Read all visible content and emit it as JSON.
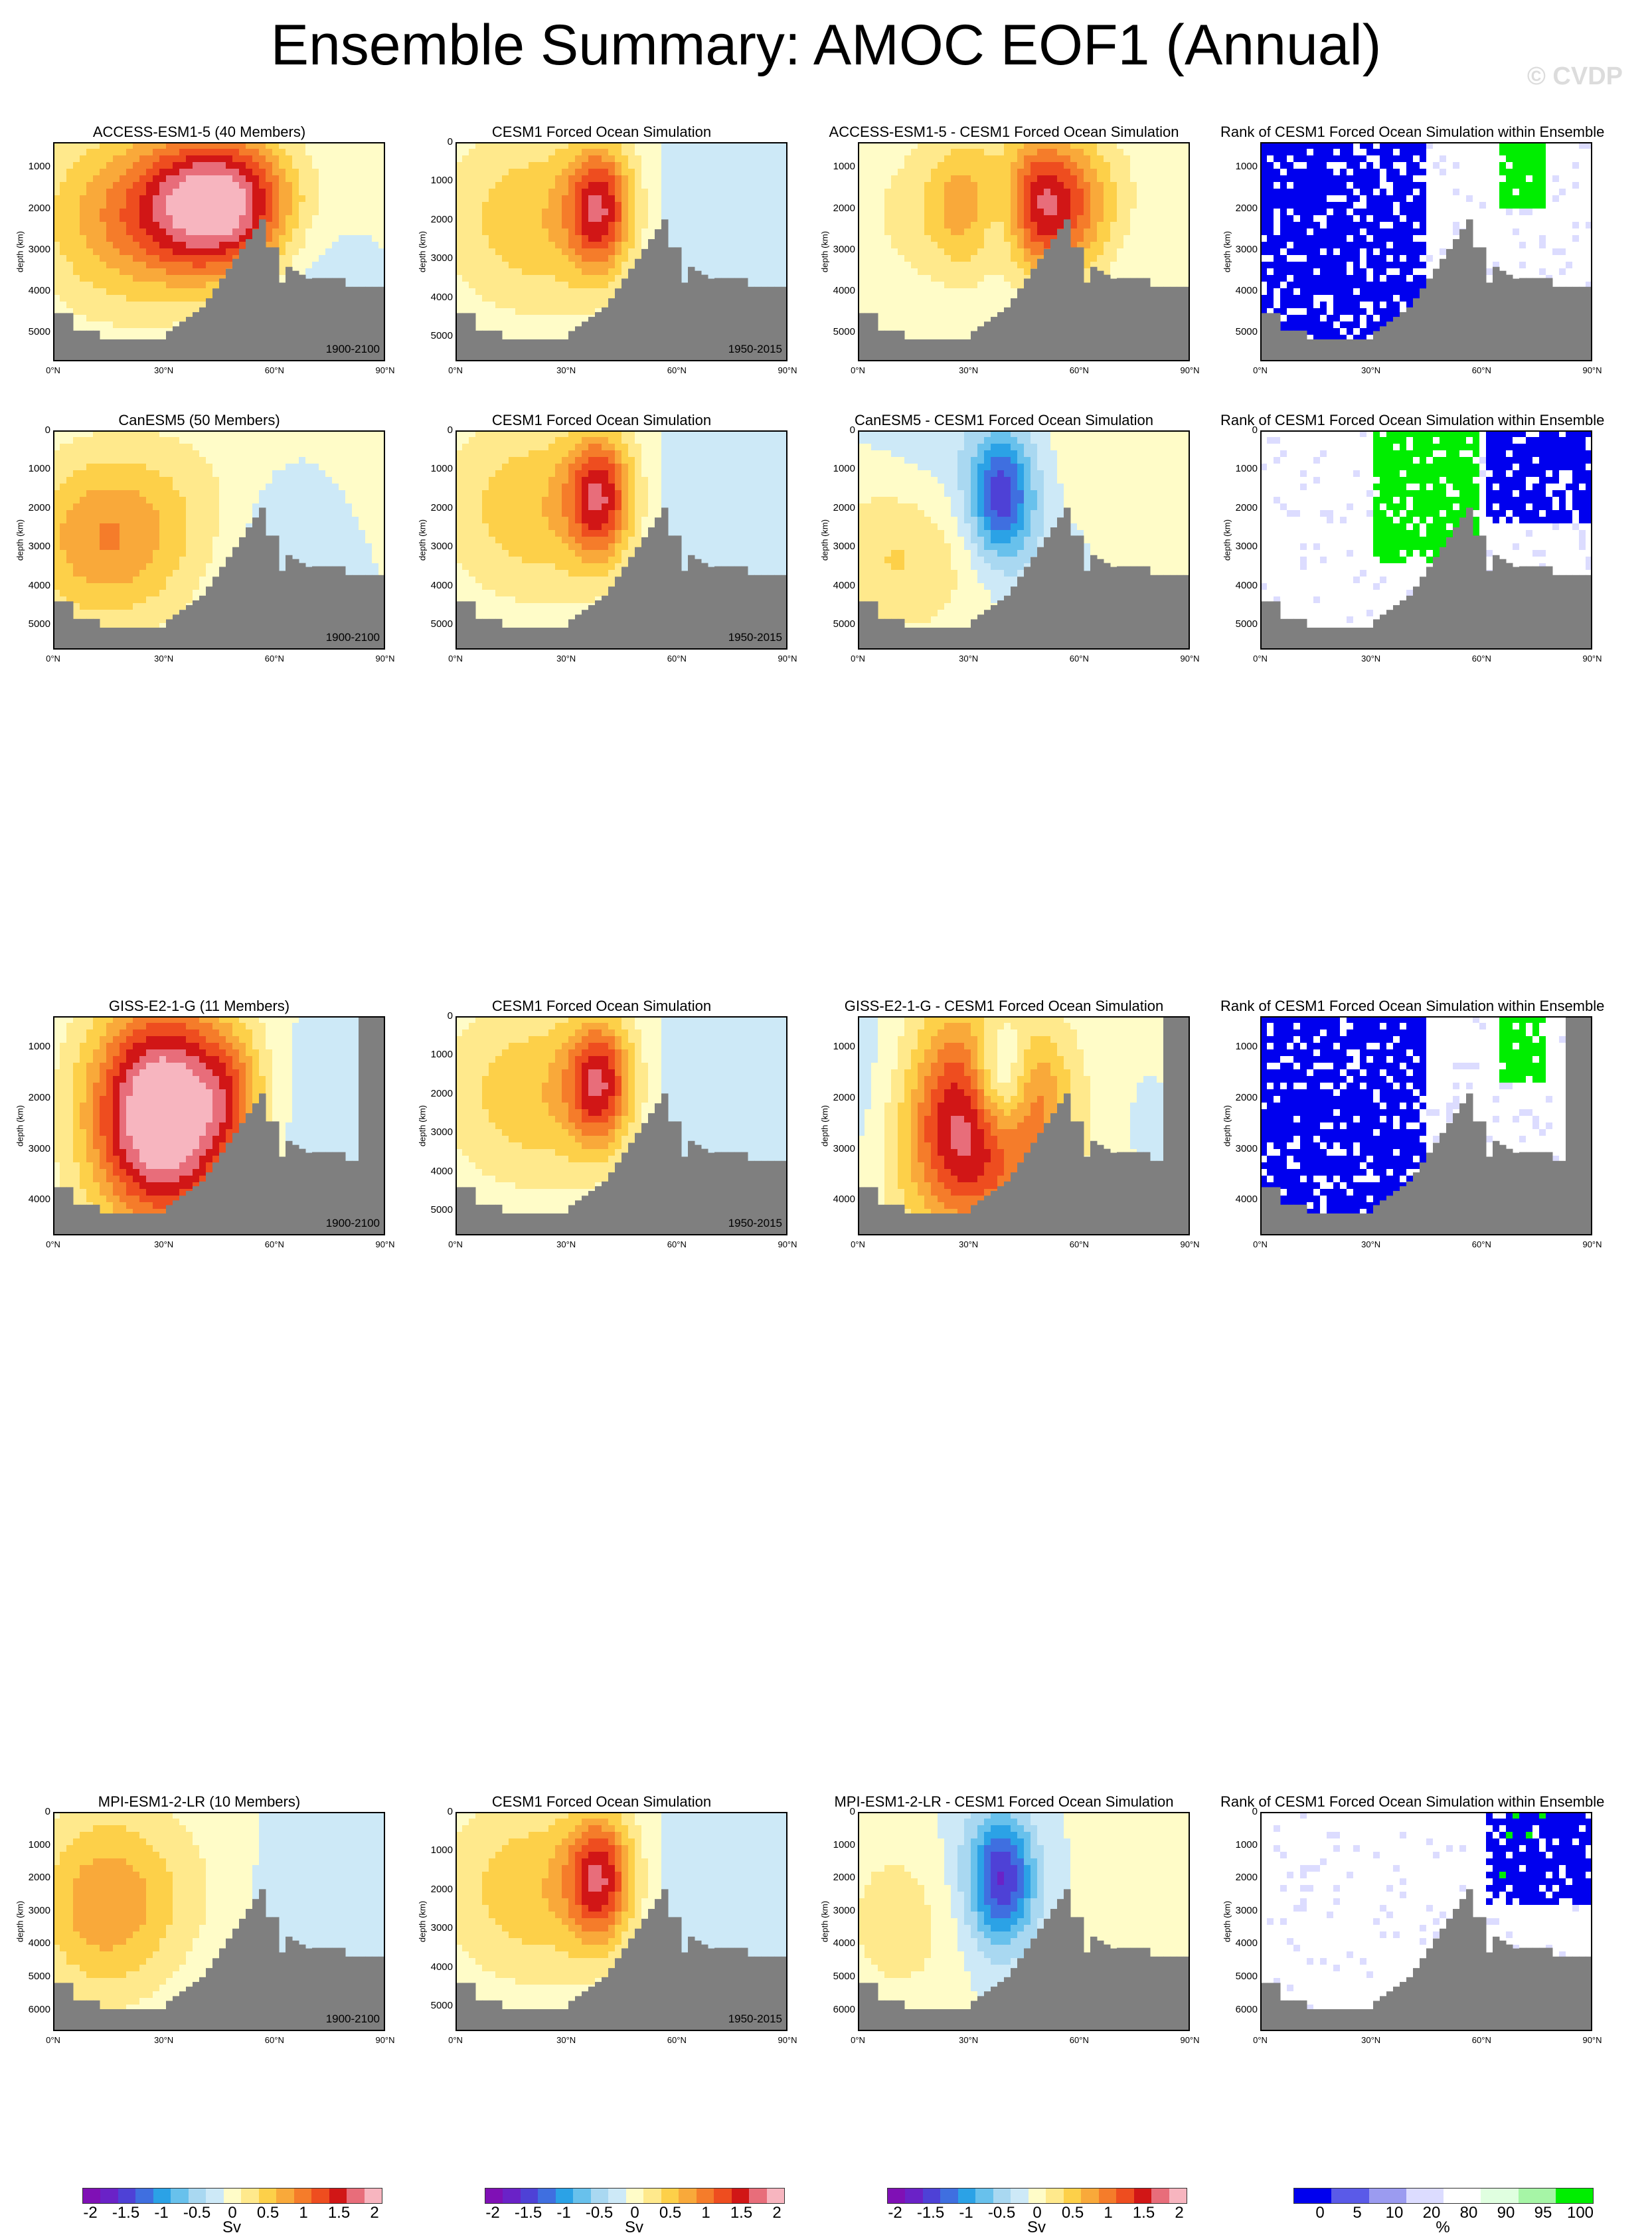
{
  "title": "Ensemble Summary: AMOC EOF1 (Annual)",
  "watermark": "© CVDP",
  "colors": {
    "land": "#7f7f7f",
    "pos": [
      "#fffcc8",
      "#ffe98c",
      "#fdd049",
      "#f9a93a",
      "#f57c2a",
      "#ee4d1f",
      "#d11616",
      "#e86d7a",
      "#f7b5bf"
    ],
    "neg": [
      "#cde9f7",
      "#a9d8f1",
      "#68c1ec",
      "#2ba2e6",
      "#3f6fe0",
      "#4e41d6",
      "#6a22c7",
      "#7f10b5"
    ],
    "rank_blue": "#0000ee",
    "rank_green": "#00ee00"
  },
  "x_ticks": [
    "0°N",
    "30°N",
    "60°N",
    "90°N"
  ],
  "y_axis_label": "depth (km)",
  "rows": [
    {
      "model": {
        "title": "ACCESS-ESM1-5 (40 Members)",
        "period": "1900-2100",
        "yticks": [
          "1000",
          "2000",
          "3000",
          "4000",
          "5000"
        ]
      },
      "obs": {
        "title": "CESM1 Forced Ocean Simulation",
        "period": "1950-2015",
        "yticks": [
          "0",
          "1000",
          "2000",
          "3000",
          "4000",
          "5000"
        ]
      },
      "diff": {
        "title": "ACCESS-ESM1-5 - CESM1 Forced Ocean Simulation",
        "yticks": [
          "1000",
          "2000",
          "3000",
          "4000",
          "5000"
        ]
      },
      "rank": {
        "title": "Rank of CESM1 Forced Ocean Simulation within Ensemble",
        "yticks": [
          "1000",
          "2000",
          "3000",
          "4000",
          "5000"
        ]
      }
    },
    {
      "model": {
        "title": "CanESM5 (50 Members)",
        "period": "1900-2100",
        "yticks": [
          "0",
          "1000",
          "2000",
          "3000",
          "4000",
          "5000"
        ]
      },
      "obs": {
        "title": "CESM1 Forced Ocean Simulation",
        "period": "1950-2015",
        "yticks": [
          "0",
          "1000",
          "2000",
          "3000",
          "4000",
          "5000"
        ]
      },
      "diff": {
        "title": "CanESM5 - CESM1 Forced Ocean Simulation",
        "yticks": [
          "0",
          "1000",
          "2000",
          "3000",
          "4000",
          "5000"
        ]
      },
      "rank": {
        "title": "Rank of CESM1 Forced Ocean Simulation within Ensemble",
        "yticks": [
          "0",
          "1000",
          "2000",
          "3000",
          "4000",
          "5000"
        ]
      }
    },
    {
      "model": {
        "title": "GISS-E2-1-G (11 Members)",
        "period": "1900-2100",
        "yticks": [
          "1000",
          "2000",
          "3000",
          "4000"
        ]
      },
      "obs": {
        "title": "CESM1 Forced Ocean Simulation",
        "period": "1950-2015",
        "yticks": [
          "0",
          "1000",
          "2000",
          "3000",
          "4000",
          "5000"
        ]
      },
      "diff": {
        "title": "GISS-E2-1-G - CESM1 Forced Ocean Simulation",
        "yticks": [
          "1000",
          "2000",
          "3000",
          "4000"
        ]
      },
      "rank": {
        "title": "Rank of CESM1 Forced Ocean Simulation within Ensemble",
        "yticks": [
          "1000",
          "2000",
          "3000",
          "4000"
        ]
      }
    },
    {
      "model": {
        "title": "MPI-ESM1-2-LR (10 Members)",
        "period": "1900-2100",
        "yticks": [
          "0",
          "1000",
          "2000",
          "3000",
          "4000",
          "5000",
          "6000"
        ]
      },
      "obs": {
        "title": "CESM1 Forced Ocean Simulation",
        "period": "1950-2015",
        "yticks": [
          "0",
          "1000",
          "2000",
          "3000",
          "4000",
          "5000"
        ]
      },
      "diff": {
        "title": "MPI-ESM1-2-LR - CESM1 Forced Ocean Simulation",
        "yticks": [
          "0",
          "1000",
          "2000",
          "3000",
          "4000",
          "5000",
          "6000"
        ]
      },
      "rank": {
        "title": "Rank of CESM1 Forced Ocean Simulation within Ensemble",
        "yticks": [
          "0",
          "1000",
          "2000",
          "3000",
          "4000",
          "5000",
          "6000"
        ]
      }
    }
  ],
  "colorbars": {
    "sv_labels": [
      "-2",
      "-1.5",
      "-1",
      "-0.5",
      "0",
      "0.5",
      "1",
      "1.5",
      "2"
    ],
    "sv_unit": "Sv",
    "rank_labels": [
      "0",
      "5",
      "10",
      "20",
      "80",
      "90",
      "95",
      "100"
    ],
    "rank_unit": "%"
  },
  "chart_data": [
    {
      "type": "heatmap",
      "title": "ACCESS-ESM1-5 (40 Members)",
      "xlabel": "",
      "ylabel": "depth (km)",
      "xlim": [
        0,
        90
      ],
      "ylim": [
        5500,
        0
      ],
      "units": "Sv",
      "peak": {
        "lat": 45,
        "depth": 1300,
        "value": 2.0
      }
    },
    {
      "type": "heatmap",
      "title": "CanESM5 (50 Members)",
      "xlabel": "",
      "ylabel": "depth (km)",
      "xlim": [
        0,
        90
      ],
      "ylim": [
        5500,
        0
      ],
      "units": "Sv",
      "peak": {
        "lat": 15,
        "depth": 2700,
        "value": 0.9
      }
    },
    {
      "type": "heatmap",
      "title": "GISS-E2-1-G (11 Members)",
      "xlabel": "",
      "ylabel": "depth (km)",
      "xlim": [
        0,
        90
      ],
      "ylim": [
        4800,
        0
      ],
      "units": "Sv",
      "peak": {
        "lat": 30,
        "depth": 2200,
        "value": 2.0
      }
    },
    {
      "type": "heatmap",
      "title": "MPI-ESM1-2-LR (10 Members)",
      "xlabel": "",
      "ylabel": "depth (km)",
      "xlim": [
        0,
        90
      ],
      "ylim": [
        6000,
        0
      ],
      "units": "Sv",
      "peak": {
        "lat": 15,
        "depth": 2200,
        "value": 0.9
      }
    },
    {
      "type": "heatmap",
      "title": "CESM1 Forced Ocean Simulation",
      "xlabel": "",
      "ylabel": "depth (km)",
      "xlim": [
        0,
        90
      ],
      "ylim": [
        5500,
        0
      ],
      "units": "Sv",
      "peak": {
        "lat": 38,
        "depth": 1800,
        "value": 1.3
      }
    }
  ]
}
